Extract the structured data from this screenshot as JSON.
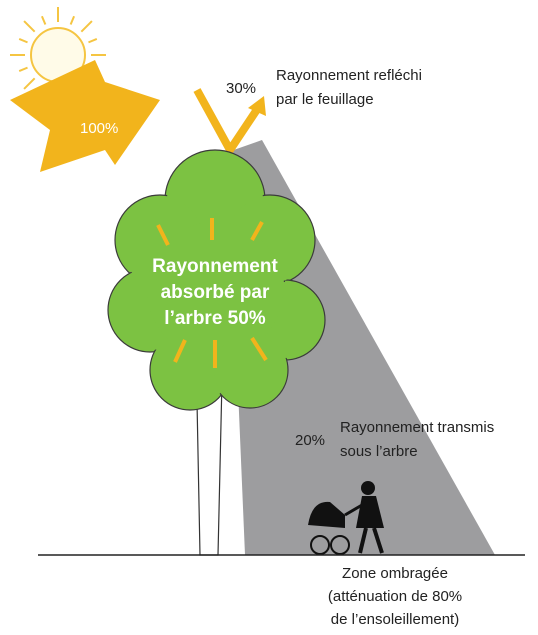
{
  "incoming": {
    "percent": "100%"
  },
  "reflected": {
    "percent": "30%",
    "lines": [
      "Rayonnement refléchi",
      "par le feuillage"
    ]
  },
  "absorbed": {
    "lines": [
      "Rayonnement",
      "absorbé par",
      "l’arbre 50%"
    ]
  },
  "transmitted": {
    "percent": "20%",
    "lines": [
      "Rayonnement transmis",
      "sous l’arbre"
    ]
  },
  "shade_zone": {
    "lines": [
      "Zone ombragée",
      "(atténuation de 80%",
      "de l’ensoleillement)"
    ]
  }
}
